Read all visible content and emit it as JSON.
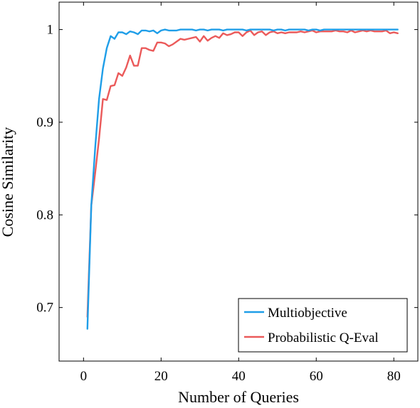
{
  "chart_data": {
    "type": "line",
    "title": "",
    "xlabel": "Number of Queries",
    "ylabel": "Cosine Similarity",
    "xlim": [
      -6.3,
      86.2
    ],
    "ylim": [
      0.6422,
      1.0296
    ],
    "xticks": [
      0,
      20,
      40,
      60,
      80
    ],
    "xtick_labels": [
      "0",
      "20",
      "40",
      "60",
      "80"
    ],
    "yticks": [
      0.7,
      0.8,
      0.9,
      1.0
    ],
    "ytick_labels": [
      "0.7",
      "0.8",
      "0.9",
      "1"
    ],
    "grid": false,
    "legend_position": "bottom-right",
    "series": [
      {
        "name": "Multiobjective",
        "color": "#1f9ee8",
        "x": [
          1,
          2,
          3,
          4,
          5,
          6,
          7,
          8,
          9,
          10,
          11,
          12,
          13,
          14,
          15,
          16,
          17,
          18,
          19,
          20,
          21,
          22,
          23,
          24,
          25,
          26,
          27,
          28,
          29,
          30,
          31,
          32,
          33,
          34,
          35,
          36,
          37,
          38,
          39,
          40,
          41,
          42,
          43,
          44,
          45,
          46,
          47,
          48,
          49,
          50,
          51,
          52,
          53,
          54,
          55,
          56,
          57,
          58,
          59,
          60,
          61,
          62,
          63,
          64,
          65,
          66,
          67,
          68,
          69,
          70,
          71,
          72,
          73,
          74,
          75,
          76,
          77,
          78,
          79,
          80,
          81
        ],
        "y": [
          0.677,
          0.81,
          0.872,
          0.925,
          0.958,
          0.98,
          0.993,
          0.99,
          0.997,
          0.997,
          0.995,
          0.998,
          0.997,
          0.995,
          0.999,
          0.999,
          0.998,
          0.999,
          0.996,
          0.999,
          1.0,
          0.999,
          0.999,
          0.999,
          1.0,
          1.0,
          1.0,
          1.0,
          0.999,
          1.0,
          1.0,
          0.999,
          1.0,
          1.0,
          1.0,
          0.999,
          1.0,
          1.0,
          1.0,
          1.0,
          1.0,
          0.999,
          1.0,
          1.0,
          1.0,
          1.0,
          1.0,
          1.0,
          0.999,
          1.0,
          1.0,
          0.999,
          1.0,
          1.0,
          1.0,
          1.0,
          1.0,
          0.999,
          1.0,
          1.0,
          0.999,
          1.0,
          1.0,
          1.0,
          1.0,
          1.0,
          1.0,
          1.0,
          1.0,
          1.0,
          1.0,
          1.0,
          1.0,
          1.0,
          1.0,
          1.0,
          1.0,
          1.0,
          1.0,
          1.0,
          1.0
        ]
      },
      {
        "name": "Probabilistic Q-Eval",
        "color": "#eb5a5a",
        "x": [
          1,
          2,
          3,
          4,
          5,
          6,
          7,
          8,
          9,
          10,
          11,
          12,
          13,
          14,
          15,
          16,
          17,
          18,
          19,
          20,
          21,
          22,
          23,
          24,
          25,
          26,
          27,
          28,
          29,
          30,
          31,
          32,
          33,
          34,
          35,
          36,
          37,
          38,
          39,
          40,
          41,
          42,
          43,
          44,
          45,
          46,
          47,
          48,
          49,
          50,
          51,
          52,
          53,
          54,
          55,
          56,
          57,
          58,
          59,
          60,
          61,
          62,
          63,
          64,
          65,
          66,
          67,
          68,
          69,
          70,
          71,
          72,
          73,
          74,
          75,
          76,
          77,
          78,
          79,
          80,
          81
        ],
        "y": [
          0.69,
          0.81,
          0.845,
          0.882,
          0.925,
          0.924,
          0.939,
          0.94,
          0.953,
          0.95,
          0.959,
          0.972,
          0.961,
          0.961,
          0.98,
          0.98,
          0.978,
          0.977,
          0.986,
          0.986,
          0.985,
          0.982,
          0.984,
          0.987,
          0.99,
          0.989,
          0.99,
          0.991,
          0.992,
          0.987,
          0.993,
          0.988,
          0.991,
          0.993,
          0.991,
          0.996,
          0.994,
          0.995,
          0.997,
          0.997,
          0.993,
          0.997,
          0.999,
          0.994,
          0.997,
          0.998,
          0.994,
          0.997,
          0.998,
          0.996,
          0.997,
          0.996,
          0.997,
          0.997,
          0.997,
          0.998,
          0.997,
          0.998,
          0.999,
          0.997,
          0.998,
          0.998,
          0.998,
          0.998,
          0.999,
          0.998,
          0.998,
          0.997,
          0.999,
          0.997,
          0.998,
          0.999,
          0.998,
          0.999,
          0.998,
          0.998,
          0.998,
          0.999,
          0.996,
          0.997,
          0.996
        ]
      }
    ]
  }
}
